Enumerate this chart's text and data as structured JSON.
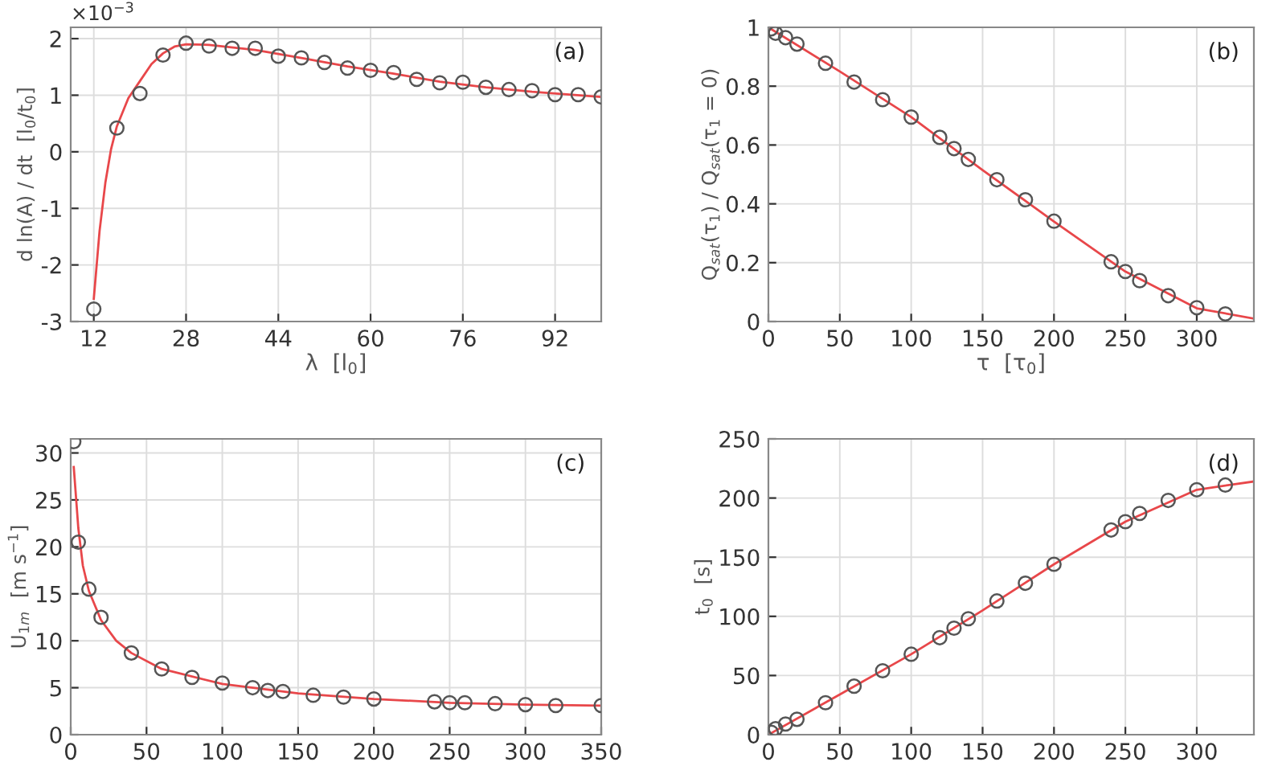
{
  "chart_data": [
    {
      "type": "scatter",
      "xlabel": "λ  [l$_{0}$]",
      "ylabel": "d ln(A) / dt  [l$_{0}$/t$_{0}$]",
      "annotations": [
        "(a)",
        "×10$^{−3}$"
      ],
      "xlim": [
        8,
        100
      ],
      "xticks": [
        12,
        28,
        44,
        60,
        76,
        92
      ],
      "ylim": [
        -3,
        2.2
      ],
      "yticks": [
        -3,
        -2,
        -1,
        0,
        1,
        2
      ],
      "grid": true,
      "series": [
        {
          "marker": "circle",
          "color": "#555555",
          "x": [
            12,
            16,
            20,
            24,
            28,
            32,
            36,
            40,
            44,
            48,
            52,
            56,
            60,
            64,
            68,
            72,
            76,
            80,
            84,
            88,
            92,
            96,
            100
          ],
          "values": [
            -2.78,
            0.42,
            1.03,
            1.71,
            1.92,
            1.87,
            1.83,
            1.83,
            1.69,
            1.66,
            1.58,
            1.48,
            1.44,
            1.4,
            1.28,
            1.22,
            1.23,
            1.14,
            1.1,
            1.08,
            1.01,
            1.01,
            0.97
          ]
        },
        {
          "type": "line",
          "marker": "none",
          "color": "#e8474a",
          "x": [
            12,
            13,
            14,
            15,
            16,
            18,
            20,
            22,
            24,
            26,
            28,
            32,
            40,
            48,
            56,
            64,
            72,
            80,
            88,
            100
          ],
          "values": [
            -2.6,
            -1.4,
            -0.55,
            0.05,
            0.45,
            0.95,
            1.25,
            1.55,
            1.74,
            1.86,
            1.9,
            1.89,
            1.8,
            1.66,
            1.51,
            1.38,
            1.24,
            1.14,
            1.06,
            0.97
          ]
        }
      ]
    },
    {
      "type": "scatter",
      "xlabel": "τ  [τ$_{0}$]",
      "ylabel": "Q$_{sat}$(τ$_{1}$) / Q$_{sat}$(τ$_{1}$ = 0)",
      "annotations": [
        "(b)"
      ],
      "xlim": [
        0,
        340
      ],
      "xticks": [
        0,
        50,
        100,
        150,
        200,
        250,
        300
      ],
      "ylim": [
        0,
        1
      ],
      "yticks": [
        0,
        0.2,
        0.4,
        0.6,
        0.8,
        1
      ],
      "grid": true,
      "series": [
        {
          "marker": "circle",
          "color": "#555555",
          "x": [
            2,
            5,
            12,
            20,
            40,
            60,
            80,
            100,
            120,
            130,
            140,
            160,
            180,
            200,
            240,
            250,
            260,
            280,
            300,
            320
          ],
          "values": [
            0.995,
            0.98,
            0.965,
            0.943,
            0.878,
            0.814,
            0.754,
            0.695,
            0.626,
            0.588,
            0.551,
            0.482,
            0.414,
            0.341,
            0.203,
            0.17,
            0.139,
            0.088,
            0.047,
            0.026
          ]
        },
        {
          "type": "line",
          "marker": "none",
          "color": "#e8474a",
          "x": [
            0,
            50,
            100,
            150,
            200,
            250,
            300,
            340
          ],
          "values": [
            1.0,
            0.85,
            0.695,
            0.515,
            0.34,
            0.17,
            0.045,
            0.01
          ]
        }
      ]
    },
    {
      "type": "scatter",
      "ylabel": "U$_{1m}$  [m s$^{−1}$]",
      "annotations": [
        "(c)"
      ],
      "xlim": [
        0,
        350
      ],
      "xticks": [
        0,
        50,
        100,
        150,
        200,
        250,
        300,
        350
      ],
      "ylim": [
        0,
        31.5
      ],
      "yticks": [
        0,
        5,
        10,
        15,
        20,
        25,
        30
      ],
      "grid": true,
      "series": [
        {
          "marker": "circle",
          "color": "#555555",
          "x": [
            2,
            5,
            12,
            20,
            40,
            60,
            80,
            100,
            120,
            130,
            140,
            160,
            180,
            200,
            240,
            250,
            260,
            280,
            300,
            320,
            350
          ],
          "values": [
            31.2,
            20.5,
            15.5,
            12.5,
            8.7,
            7.0,
            6.1,
            5.5,
            5.0,
            4.7,
            4.6,
            4.2,
            4.0,
            3.8,
            3.5,
            3.4,
            3.4,
            3.3,
            3.2,
            3.1,
            3.1
          ]
        },
        {
          "type": "line",
          "marker": "none",
          "color": "#e8474a",
          "x": [
            2,
            5,
            8,
            12,
            20,
            30,
            40,
            60,
            100,
            150,
            200,
            250,
            300,
            350
          ],
          "values": [
            28.5,
            22,
            18,
            15.3,
            12.2,
            10,
            8.7,
            7.0,
            5.4,
            4.4,
            3.8,
            3.4,
            3.2,
            3.1
          ]
        }
      ]
    },
    {
      "type": "scatter",
      "ylabel": "t$_{0}$  [s]",
      "annotations": [
        "(d)"
      ],
      "xlim": [
        0,
        340
      ],
      "xticks": [
        0,
        50,
        100,
        150,
        200,
        250,
        300
      ],
      "ylim": [
        0,
        250
      ],
      "yticks": [
        0,
        50,
        100,
        150,
        200,
        250
      ],
      "grid": true,
      "series": [
        {
          "marker": "circle",
          "color": "#555555",
          "x": [
            2,
            5,
            12,
            20,
            40,
            60,
            80,
            100,
            120,
            130,
            140,
            160,
            180,
            200,
            240,
            250,
            260,
            280,
            300,
            320
          ],
          "values": [
            2,
            5,
            9,
            13,
            27,
            41,
            54,
            68,
            82,
            90,
            98,
            113,
            128,
            144,
            173,
            180,
            187,
            198,
            207,
            211
          ]
        },
        {
          "type": "line",
          "marker": "none",
          "color": "#e8474a",
          "x": [
            0,
            50,
            100,
            150,
            200,
            250,
            300,
            340
          ],
          "values": [
            0,
            34,
            68,
            105,
            144,
            180,
            207,
            214
          ]
        }
      ]
    }
  ]
}
